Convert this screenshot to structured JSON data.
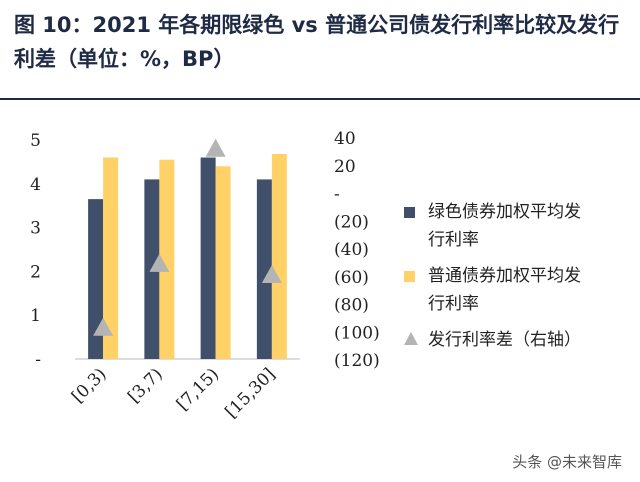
{
  "title": "图 10：2021 年各期限绿色 vs 普通公司债发行利率比较及发行利差（单位：%，BP）",
  "watermark": "头条 @未来智库",
  "colors": {
    "green_bond": "#404f6a",
    "normal_bond": "#ffd166",
    "spread": "#b4b4b4",
    "title": "#1f2a44"
  },
  "chart_data": {
    "type": "bar",
    "title": "",
    "categories": [
      "[0,3)",
      "[3,7)",
      "[7,15)",
      "[15,30]"
    ],
    "ylim_left": [
      0,
      5
    ],
    "left_ticks": [
      "-",
      "1",
      "2",
      "3",
      "4",
      "5"
    ],
    "ylim_right": [
      -120,
      40
    ],
    "right_ticks": [
      "40",
      "20",
      "-",
      "(20)",
      "(40)",
      "(60)",
      "(80)",
      "(100)",
      "(120)"
    ],
    "series": [
      {
        "name": "绿色债券加权平均发行利率",
        "type": "bar",
        "axis": "left",
        "values": [
          3.65,
          4.1,
          4.6,
          4.1
        ]
      },
      {
        "name": "普通债券加权平均发行利率",
        "type": "bar",
        "axis": "left",
        "values": [
          4.6,
          4.55,
          4.4,
          4.68
        ]
      },
      {
        "name": "发行利率差（右轴）",
        "type": "scatter",
        "marker": "triangle",
        "axis": "right",
        "values": [
          -96,
          -50,
          33,
          -58
        ]
      }
    ],
    "legend_position": "right",
    "grid": false
  }
}
